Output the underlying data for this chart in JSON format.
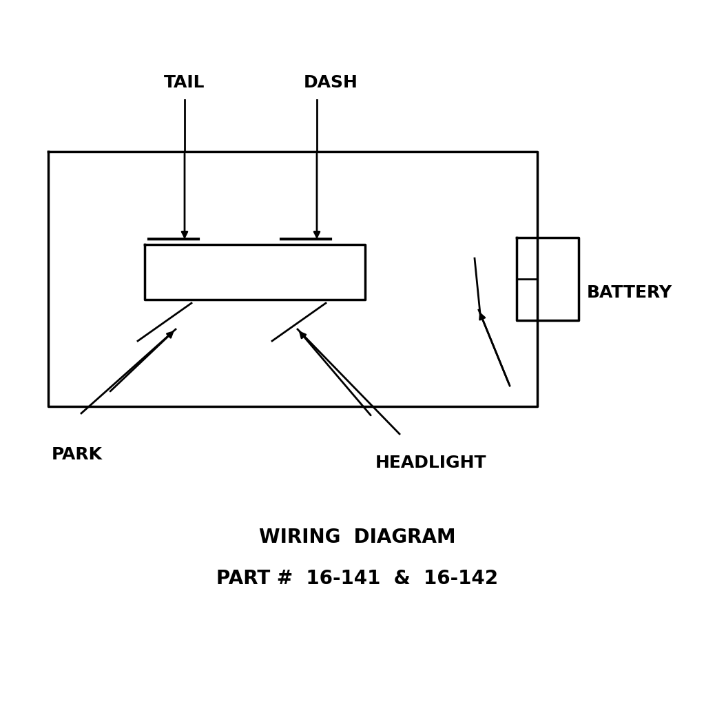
{
  "bg_color": "#ffffff",
  "line_color": "#000000",
  "text_color": "#000000",
  "title_line1": "WIRING  DIAGRAM",
  "title_line2": "PART #  16-141  &  16-142",
  "label_tail": "TAIL",
  "label_dash": "DASH",
  "label_park": "PARK",
  "label_headlight": "HEADLIGHT",
  "label_battery": "BATTERY",
  "font_size_labels": 18,
  "font_size_title": 20,
  "lw": 2.0
}
